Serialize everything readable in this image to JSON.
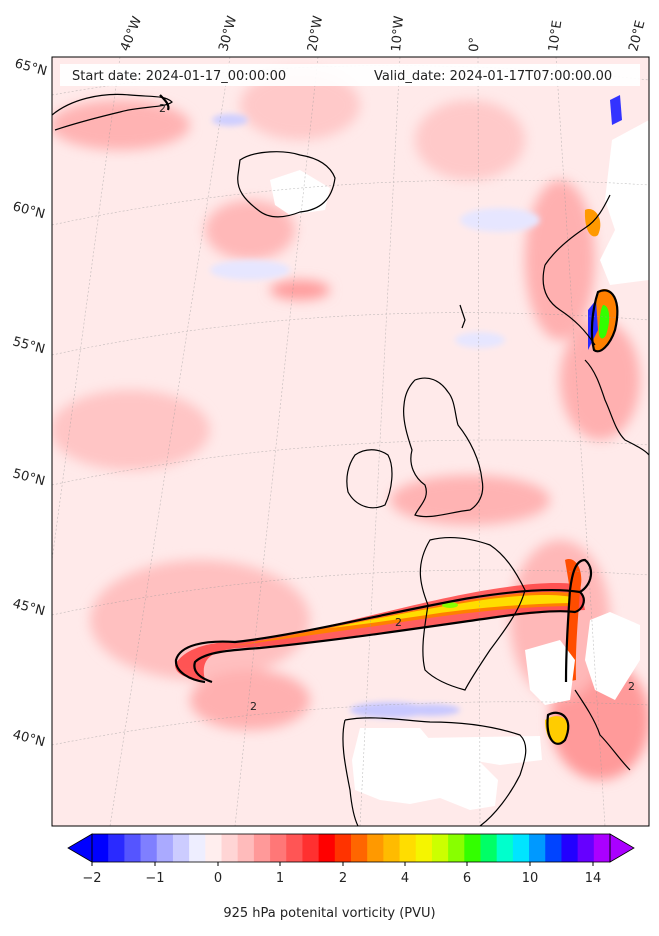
{
  "header": {
    "start_date": "Start date: 2024-01-17_00:00:00",
    "valid_date": "Valid_date: 2024-01-17T07:00:00.00"
  },
  "axes": {
    "lon_labels": [
      "40°W",
      "30°W",
      "20°W",
      "10°W",
      "0°",
      "10°E",
      "20°E"
    ],
    "lat_labels": [
      "65°N",
      "60°N",
      "55°N",
      "50°N",
      "45°N",
      "40°N"
    ]
  },
  "contour_labels": [
    "2",
    "2",
    "2",
    "2"
  ],
  "colorbar": {
    "label": "925 hPa potenital vorticity (PVU)",
    "ticks": [
      "−2",
      "−1",
      "0",
      "1",
      "2",
      "4",
      "6",
      "10",
      "14"
    ],
    "colors": [
      "#0000ff",
      "#2a2aff",
      "#5555ff",
      "#7f7fff",
      "#aaaaff",
      "#ccccff",
      "#eeeeff",
      "#ffeeee",
      "#ffd5d5",
      "#ffbbbb",
      "#ff9999",
      "#ff7777",
      "#ff5555",
      "#ff3030",
      "#ff0000",
      "#ff3300",
      "#ff6600",
      "#ff9900",
      "#ffbb00",
      "#ffdd00",
      "#f5f500",
      "#ccff00",
      "#88ff00",
      "#33ff00",
      "#00ff66",
      "#00ffcc",
      "#00e5ff",
      "#0099ff",
      "#0044ff",
      "#2200ff",
      "#6600ff",
      "#aa00ff"
    ]
  }
}
